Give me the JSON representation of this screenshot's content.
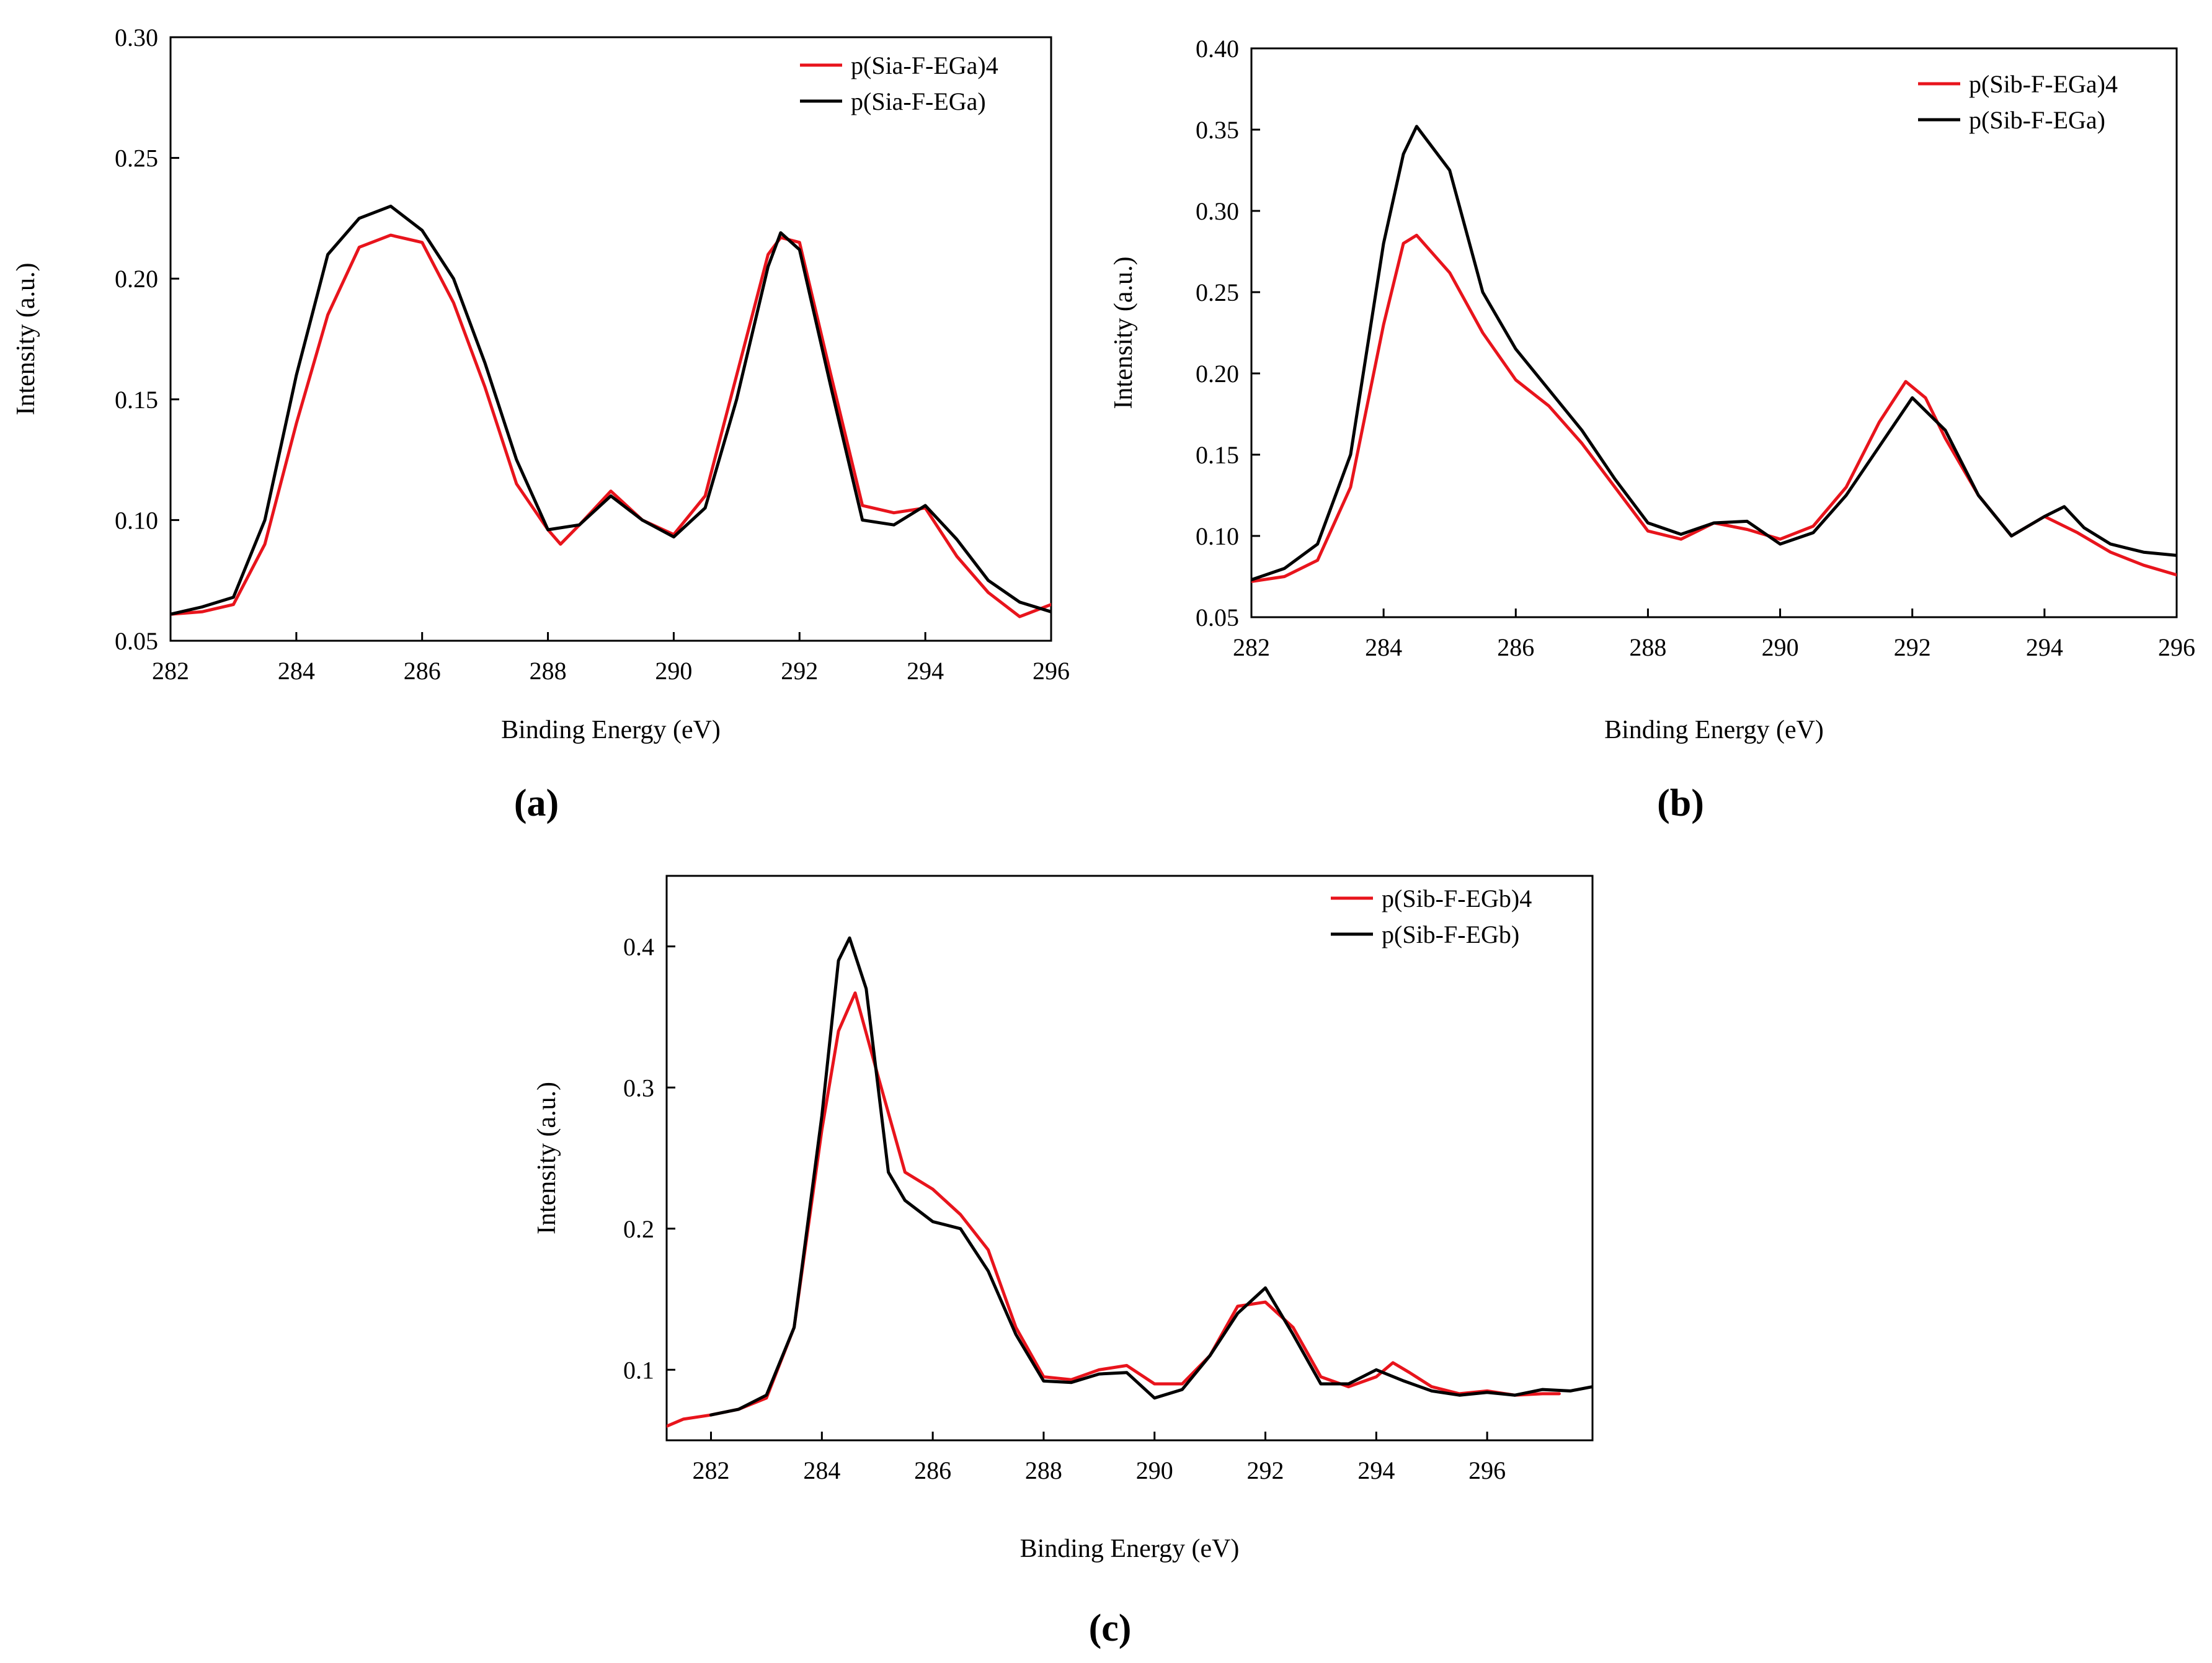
{
  "colors": {
    "red": "#e8141c",
    "black": "#000000"
  },
  "chart_data": [
    {
      "type": "line",
      "panel_label": "(a)",
      "xlabel": "Binding Energy (eV)",
      "ylabel": "Intensity (a.u.)",
      "xlim": [
        282,
        296
      ],
      "ylim": [
        0.05,
        0.3
      ],
      "xticks": [
        282,
        284,
        286,
        288,
        290,
        292,
        294,
        296
      ],
      "xtick_labels": [
        "282",
        "284",
        "286",
        "288",
        "290",
        "292",
        "294",
        "296"
      ],
      "yticks": [
        0.05,
        0.1,
        0.15,
        0.2,
        0.25,
        0.3
      ],
      "ytick_labels": [
        "0.05",
        "0.10",
        "0.15",
        "0.20",
        "0.25",
        "0.30"
      ],
      "legend": "top-right",
      "series": [
        {
          "name": "p(Sia-F-EGa)4",
          "color": "#e8141c",
          "x": [
            282,
            282.5,
            283,
            283.5,
            284,
            284.5,
            285,
            285.5,
            286,
            286.5,
            287,
            287.5,
            288,
            288.2,
            288.5,
            289,
            289.5,
            290,
            290.5,
            291,
            291.5,
            291.7,
            292,
            292.5,
            293,
            293.5,
            294,
            294.5,
            295,
            295.5,
            296
          ],
          "y": [
            0.061,
            0.062,
            0.065,
            0.09,
            0.14,
            0.185,
            0.213,
            0.218,
            0.215,
            0.19,
            0.155,
            0.115,
            0.096,
            0.09,
            0.098,
            0.112,
            0.1,
            0.094,
            0.11,
            0.16,
            0.21,
            0.217,
            0.215,
            0.16,
            0.106,
            0.103,
            0.105,
            0.085,
            0.07,
            0.06,
            0.065
          ]
        },
        {
          "name": "p(Sia-F-EGa)",
          "color": "#000000",
          "x": [
            282,
            282.5,
            283,
            283.5,
            284,
            284.5,
            285,
            285.5,
            286,
            286.5,
            287,
            287.5,
            288,
            288.5,
            289,
            289.5,
            290,
            290.5,
            291,
            291.5,
            291.7,
            292,
            292.5,
            293,
            293.5,
            294,
            294.5,
            295,
            295.5,
            296
          ],
          "y": [
            0.061,
            0.064,
            0.068,
            0.1,
            0.16,
            0.21,
            0.225,
            0.23,
            0.22,
            0.2,
            0.165,
            0.125,
            0.096,
            0.098,
            0.11,
            0.1,
            0.093,
            0.105,
            0.15,
            0.205,
            0.219,
            0.212,
            0.155,
            0.1,
            0.098,
            0.106,
            0.092,
            0.075,
            0.066,
            0.062
          ]
        }
      ]
    },
    {
      "type": "line",
      "panel_label": "(b)",
      "xlabel": "Binding Energy (eV)",
      "ylabel": "Intensity (a.u.)",
      "xlim": [
        282,
        296
      ],
      "ylim": [
        0.05,
        0.4
      ],
      "xticks": [
        282,
        284,
        286,
        288,
        290,
        292,
        294,
        296
      ],
      "xtick_labels": [
        "282",
        "284",
        "286",
        "288",
        "290",
        "292",
        "294",
        "296"
      ],
      "yticks": [
        0.05,
        0.1,
        0.15,
        0.2,
        0.25,
        0.3,
        0.35,
        0.4
      ],
      "ytick_labels": [
        "0.05",
        "0.10",
        "0.15",
        "0.20",
        "0.25",
        "0.30",
        "0.35",
        "0.40"
      ],
      "legend": "top-right",
      "series": [
        {
          "name": "p(Sib-F-EGa)4",
          "color": "#e8141c",
          "x": [
            282,
            282.5,
            283,
            283.5,
            284,
            284.3,
            284.5,
            285,
            285.5,
            286,
            286.5,
            287,
            287.5,
            288,
            288.5,
            289,
            289.5,
            290,
            290.5,
            291,
            291.5,
            291.9,
            292.2,
            292.5,
            293,
            293.5,
            294,
            294.5,
            295,
            295.5,
            296
          ],
          "y": [
            0.072,
            0.075,
            0.085,
            0.13,
            0.23,
            0.28,
            0.285,
            0.262,
            0.225,
            0.196,
            0.18,
            0.157,
            0.13,
            0.103,
            0.098,
            0.108,
            0.104,
            0.098,
            0.106,
            0.13,
            0.17,
            0.195,
            0.185,
            0.16,
            0.125,
            0.1,
            0.112,
            0.102,
            0.09,
            0.082,
            0.076
          ]
        },
        {
          "name": "p(Sib-F-EGa)",
          "color": "#000000",
          "x": [
            282,
            282.5,
            283,
            283.5,
            284,
            284.3,
            284.5,
            285,
            285.5,
            286,
            286.5,
            287,
            287.5,
            288,
            288.5,
            289,
            289.5,
            290,
            290.5,
            291,
            291.5,
            292,
            292.5,
            293,
            293.5,
            294,
            294.3,
            294.6,
            295,
            295.5,
            296
          ],
          "y": [
            0.073,
            0.08,
            0.095,
            0.15,
            0.28,
            0.335,
            0.352,
            0.325,
            0.25,
            0.215,
            0.19,
            0.165,
            0.135,
            0.108,
            0.101,
            0.108,
            0.109,
            0.095,
            0.102,
            0.125,
            0.155,
            0.185,
            0.165,
            0.125,
            0.1,
            0.112,
            0.118,
            0.105,
            0.095,
            0.09,
            0.088
          ]
        }
      ]
    },
    {
      "type": "line",
      "panel_label": "(c)",
      "xlabel": "Binding Energy (eV)",
      "ylabel": "Intensity (a.u.)",
      "xlim": [
        281.2,
        297.9
      ],
      "ylim": [
        0.05,
        0.45
      ],
      "xticks": [
        282,
        284,
        286,
        288,
        290,
        292,
        294,
        296
      ],
      "xtick_labels": [
        "282",
        "284",
        "286",
        "288",
        "290",
        "292",
        "294",
        "296"
      ],
      "yticks": [
        0.1,
        0.2,
        0.3,
        0.4
      ],
      "ytick_labels": [
        "0.1",
        "0.2",
        "0.3",
        "0.4"
      ],
      "legend": "top-right",
      "series": [
        {
          "name": "p(Sib-F-EGb)4",
          "color": "#e8141c",
          "x": [
            281.2,
            281.5,
            282,
            282.5,
            283,
            283.5,
            284,
            284.3,
            284.6,
            285,
            285.5,
            286,
            286.5,
            287,
            287.5,
            288,
            288.5,
            289,
            289.5,
            290,
            290.5,
            291,
            291.5,
            292,
            292.5,
            293,
            293.5,
            294,
            294.3,
            294.6,
            295,
            295.5,
            296,
            296.5,
            297,
            297.3
          ],
          "y": [
            0.06,
            0.065,
            0.068,
            0.072,
            0.08,
            0.13,
            0.27,
            0.34,
            0.367,
            0.31,
            0.24,
            0.228,
            0.21,
            0.185,
            0.13,
            0.095,
            0.093,
            0.1,
            0.103,
            0.09,
            0.09,
            0.11,
            0.145,
            0.148,
            0.13,
            0.095,
            0.088,
            0.095,
            0.105,
            0.098,
            0.088,
            0.083,
            0.085,
            0.082,
            0.083,
            0.083
          ]
        },
        {
          "name": "p(Sib-F-EGb)",
          "color": "#000000",
          "x": [
            282,
            282.5,
            283,
            283.5,
            284,
            284.3,
            284.5,
            284.8,
            285.2,
            285.5,
            286,
            286.5,
            287,
            287.5,
            288,
            288.5,
            289,
            289.5,
            290,
            290.5,
            291,
            291.5,
            292,
            292.5,
            293,
            293.5,
            294,
            294.5,
            295,
            295.5,
            296,
            296.5,
            297,
            297.5,
            297.9
          ],
          "y": [
            0.068,
            0.072,
            0.082,
            0.13,
            0.28,
            0.39,
            0.406,
            0.37,
            0.24,
            0.22,
            0.205,
            0.2,
            0.17,
            0.125,
            0.092,
            0.091,
            0.097,
            0.098,
            0.08,
            0.086,
            0.11,
            0.14,
            0.158,
            0.125,
            0.09,
            0.09,
            0.1,
            0.092,
            0.085,
            0.082,
            0.084,
            0.082,
            0.086,
            0.085,
            0.088
          ]
        }
      ]
    }
  ]
}
